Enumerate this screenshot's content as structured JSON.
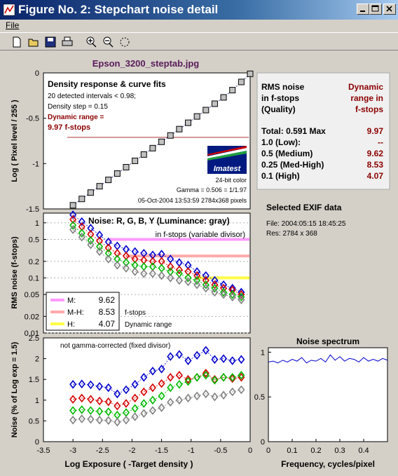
{
  "window": {
    "title": "Figure No. 2: Stepchart noise detail"
  },
  "menu": {
    "file": "File"
  },
  "toolbar": {
    "items": [
      "new-icon",
      "open-icon",
      "save-icon",
      "print-icon",
      "zoom-in-icon",
      "zoom-out-icon",
      "rotate-icon"
    ]
  },
  "colors": {
    "blue": "#0000cc",
    "red": "#d40000",
    "green": "#00bb00",
    "gray": "#808080",
    "darkred": "#8b0000",
    "title_purple": "#5a1a5a"
  },
  "figure_title": "Epson_3200_steptab.jpg",
  "chart_data": [
    {
      "type": "line",
      "name": "density",
      "title": "Density response & curve fits",
      "info_lines": [
        "20 detected intervals < 0.98;",
        "Density step = 0.15"
      ],
      "dr_lines": [
        "Dynamic range =",
        "9.97 f-stops"
      ],
      "logo_text": "Imatest",
      "footer_lines": [
        "24-bit color",
        "Gamma = 0.506 = 1/1.97",
        "05-Oct-2004 13:53:59     2784x368 pixels"
      ],
      "ylabel": "Log ( Pixel level / 255 )",
      "xlim": [
        -3.5,
        0
      ],
      "ylim": [
        -1.5,
        0
      ],
      "yticks": [
        "0",
        "-0.5",
        "-1",
        "-1.5"
      ],
      "ytick_values": [
        0,
        -0.5,
        -1,
        -1.5
      ],
      "dr_line_y": -0.71,
      "x": [
        -3.0,
        -2.85,
        -2.7,
        -2.55,
        -2.4,
        -2.25,
        -2.1,
        -1.95,
        -1.8,
        -1.65,
        -1.5,
        -1.35,
        -1.2,
        -1.05,
        -0.9,
        -0.75,
        -0.6,
        -0.45,
        -0.3,
        -0.15,
        0.0
      ],
      "y": [
        -1.46,
        -1.39,
        -1.32,
        -1.25,
        -1.18,
        -1.11,
        -1.04,
        -0.97,
        -0.9,
        -0.83,
        -0.76,
        -0.69,
        -0.62,
        -0.55,
        -0.48,
        -0.41,
        -0.34,
        -0.27,
        -0.19,
        -0.1,
        -0.01
      ]
    },
    {
      "type": "scatter",
      "name": "noise",
      "title": "Noise: R, G, B, Y (Luminance: gray)",
      "subtitle": "in f-stops (variable divisor)",
      "ylabel": "RMS noise (f-stops)",
      "scale": "log",
      "xlim": [
        -3.5,
        0
      ],
      "ylim": [
        0.01,
        1.5
      ],
      "yticks": [
        "1",
        "0.5",
        "0.2",
        "0.1",
        "0.05",
        "0.02",
        "0.01"
      ],
      "ytick_values": [
        1,
        0.5,
        0.2,
        0.1,
        0.05,
        0.02,
        0.01
      ],
      "legend": [
        {
          "label": "M:",
          "value": "9.62",
          "color": "#ff99ff"
        },
        {
          "label": "M-H:",
          "value": "8.53",
          "color": "#ffaaaa"
        },
        {
          "label": "H:",
          "value": "4.07",
          "color": "#ffff44"
        }
      ],
      "legend_notes": [
        "f-stops",
        "Dynamic range"
      ],
      "thresholds": [
        {
          "y": 0.5,
          "x_from": -2.4,
          "color": "#ff99ff"
        },
        {
          "y": 0.25,
          "x_from": -2.1,
          "color": "#ffaaaa"
        },
        {
          "y": 0.1,
          "x_from": -0.9,
          "color": "#ffff44"
        }
      ],
      "x": [
        -3.0,
        -2.85,
        -2.7,
        -2.55,
        -2.4,
        -2.25,
        -2.1,
        -1.95,
        -1.8,
        -1.65,
        -1.5,
        -1.35,
        -1.2,
        -1.05,
        -0.9,
        -0.75,
        -0.6,
        -0.45,
        -0.3,
        -0.15
      ],
      "series": [
        {
          "name": "B",
          "color": "#0000cc",
          "values": [
            1.4,
            1.05,
            0.8,
            0.6,
            0.45,
            0.38,
            0.33,
            0.3,
            0.28,
            0.26,
            0.27,
            0.22,
            0.19,
            0.17,
            0.13,
            0.11,
            0.09,
            0.075,
            0.065,
            0.055
          ]
        },
        {
          "name": "R",
          "color": "#d40000",
          "values": [
            1.15,
            0.85,
            0.62,
            0.47,
            0.35,
            0.28,
            0.25,
            0.22,
            0.21,
            0.2,
            0.2,
            0.16,
            0.14,
            0.13,
            0.11,
            0.09,
            0.075,
            0.065,
            0.06,
            0.05
          ]
        },
        {
          "name": "G",
          "color": "#00bb00",
          "values": [
            0.9,
            0.65,
            0.48,
            0.37,
            0.28,
            0.22,
            0.19,
            0.17,
            0.16,
            0.16,
            0.15,
            0.13,
            0.12,
            0.1,
            0.09,
            0.075,
            0.065,
            0.055,
            0.05,
            0.045
          ]
        },
        {
          "name": "Y",
          "color": "#808080",
          "values": [
            0.75,
            0.55,
            0.4,
            0.3,
            0.22,
            0.17,
            0.15,
            0.13,
            0.12,
            0.12,
            0.11,
            0.1,
            0.09,
            0.085,
            0.075,
            0.065,
            0.055,
            0.05,
            0.045,
            0.04
          ]
        }
      ]
    },
    {
      "type": "scatter",
      "name": "noise-pct",
      "title": "not gamma-corrected (fixed divisor)",
      "ylabel": "Noise (% of Log exp = 1.5)",
      "xlabel": "Log Exposure ( -Target density )",
      "xlim": [
        -3.5,
        0
      ],
      "ylim": [
        0,
        2.5
      ],
      "xticks": [
        "-3.5",
        "-3",
        "-2.5",
        "-2",
        "-1.5",
        "-1",
        "-0.5",
        "0"
      ],
      "xtick_values": [
        -3.5,
        -3,
        -2.5,
        -2,
        -1.5,
        -1,
        -0.5,
        0
      ],
      "yticks": [
        "0",
        "0.5",
        "1",
        "1.5",
        "2",
        "2.5"
      ],
      "ytick_values": [
        0,
        0.5,
        1,
        1.5,
        2,
        2.5
      ],
      "x": [
        -3.0,
        -2.85,
        -2.7,
        -2.55,
        -2.4,
        -2.25,
        -2.1,
        -1.95,
        -1.8,
        -1.65,
        -1.5,
        -1.35,
        -1.2,
        -1.05,
        -0.9,
        -0.75,
        -0.6,
        -0.45,
        -0.3,
        -0.15
      ],
      "series": [
        {
          "name": "B",
          "color": "#0000cc",
          "values": [
            1.38,
            1.39,
            1.37,
            1.33,
            1.3,
            1.15,
            1.25,
            1.38,
            1.55,
            1.7,
            1.75,
            2.05,
            2.1,
            1.95,
            2.08,
            2.2,
            1.98,
            2.0,
            1.95,
            1.98
          ]
        },
        {
          "name": "R",
          "color": "#d40000",
          "values": [
            1.02,
            1.05,
            1.02,
            0.98,
            0.96,
            0.86,
            0.92,
            1.05,
            1.2,
            1.3,
            1.4,
            1.55,
            1.6,
            1.5,
            1.55,
            1.65,
            1.5,
            1.55,
            1.52,
            1.55
          ]
        },
        {
          "name": "G",
          "color": "#00bb00",
          "values": [
            0.75,
            0.77,
            0.75,
            0.73,
            0.72,
            0.64,
            0.7,
            0.8,
            0.92,
            1.0,
            1.1,
            1.3,
            1.38,
            1.45,
            1.55,
            1.6,
            1.48,
            1.55,
            1.55,
            1.6
          ]
        },
        {
          "name": "Y",
          "color": "#808080",
          "values": [
            0.52,
            0.55,
            0.54,
            0.52,
            0.51,
            0.47,
            0.52,
            0.6,
            0.68,
            0.75,
            0.82,
            0.95,
            1.0,
            1.05,
            1.1,
            1.15,
            1.08,
            1.12,
            1.2,
            1.25
          ]
        }
      ]
    },
    {
      "type": "line",
      "name": "spectrum",
      "title": "Noise spectrum",
      "xlabel": "Frequency, cycles/pixel",
      "xlim": [
        0,
        0.5
      ],
      "ylim": [
        0,
        1.05
      ],
      "xticks": [
        "0",
        "0.1",
        "0.2",
        "0.3",
        "0.4"
      ],
      "xtick_values": [
        0,
        0.1,
        0.2,
        0.3,
        0.4
      ],
      "yticks": [
        "0",
        "0.5",
        "1"
      ],
      "ytick_values": [
        0,
        0.5,
        1
      ],
      "x": [
        0,
        0.02,
        0.04,
        0.06,
        0.08,
        0.1,
        0.12,
        0.14,
        0.16,
        0.18,
        0.2,
        0.22,
        0.24,
        0.26,
        0.28,
        0.3,
        0.32,
        0.34,
        0.36,
        0.38,
        0.4,
        0.42,
        0.44,
        0.46,
        0.48,
        0.5
      ],
      "y": [
        0.89,
        0.9,
        0.88,
        0.91,
        0.89,
        0.92,
        0.9,
        0.94,
        0.88,
        0.91,
        0.9,
        0.93,
        0.89,
        0.97,
        0.91,
        0.95,
        0.9,
        0.93,
        0.92,
        0.89,
        0.94,
        0.9,
        0.92,
        0.9,
        0.93,
        0.91
      ]
    }
  ],
  "rms_table": {
    "header_left": [
      "RMS noise",
      "in f-stops",
      "(Quality)"
    ],
    "header_right": [
      "Dynamic",
      "range in",
      "f-stops"
    ],
    "rows": [
      {
        "label": "Total: 0.591 Max",
        "value": "9.97"
      },
      {
        "label": "1.0    (Low):",
        "value": "--"
      },
      {
        "label": "0.5    (Medium)",
        "value": "9.62"
      },
      {
        "label": "0.25  (Med-High)",
        "value": "8.53"
      },
      {
        "label": "0.1    (High)",
        "value": "4.07"
      }
    ]
  },
  "exif": {
    "title": "Selected EXIF data",
    "lines": [
      "File:  2004:05:15 18:45:25",
      "Res:    2784 x 368"
    ]
  }
}
